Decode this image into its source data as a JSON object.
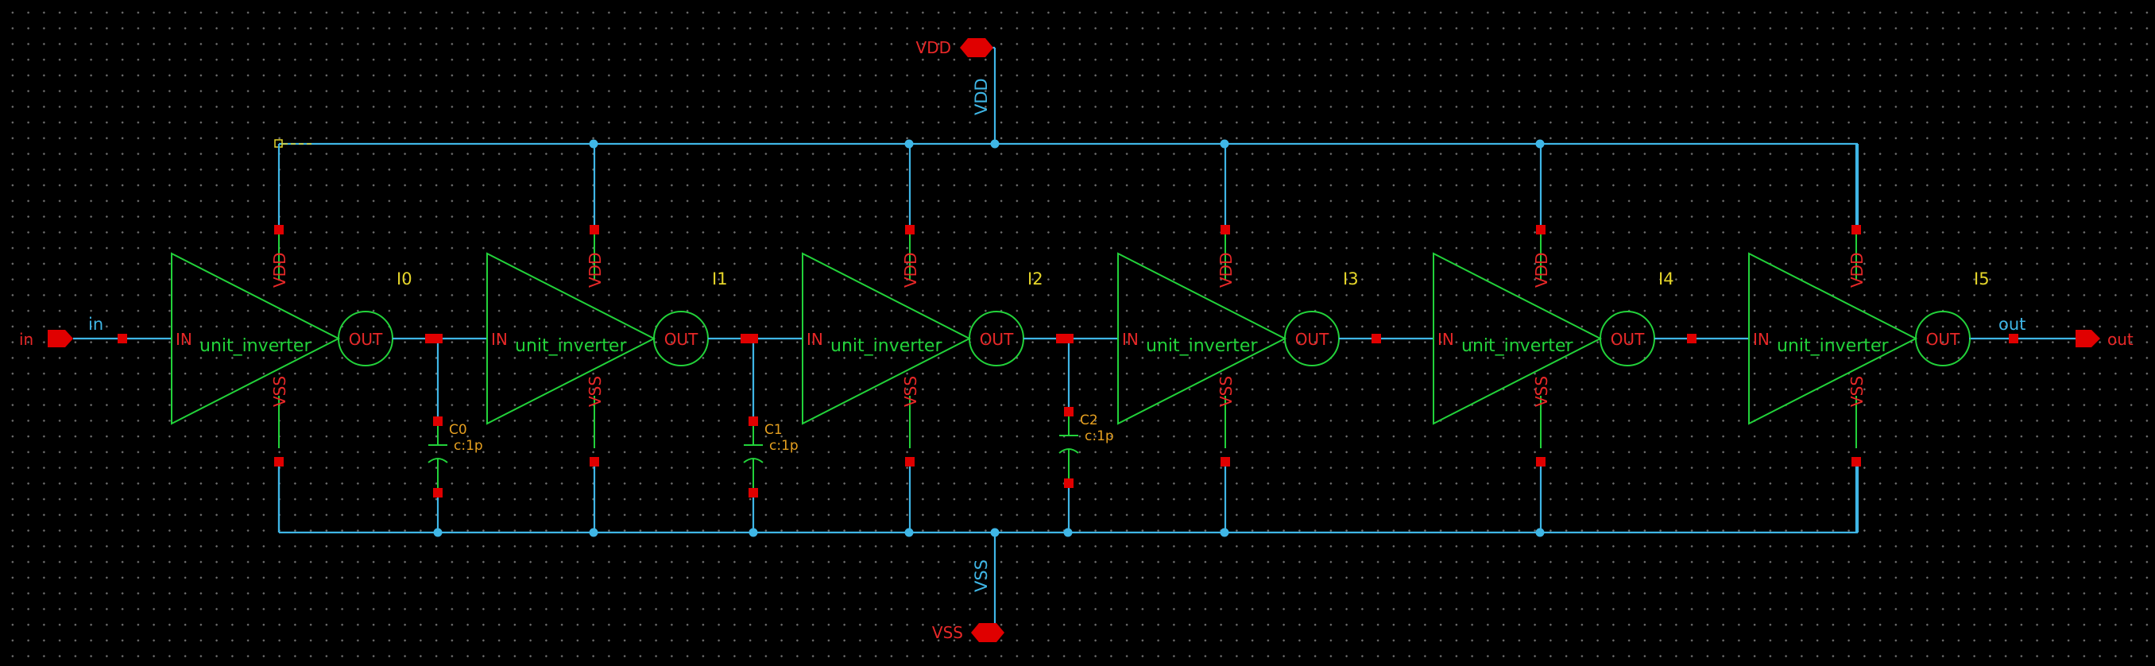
{
  "schematic": {
    "supply_pins": {
      "top": "VDD",
      "bottom": "VSS"
    },
    "rail_labels": {
      "top": "VDD",
      "bottom": "VSS"
    },
    "io_pins": {
      "input": "in",
      "output": "out"
    },
    "wire_labels": {
      "input": "in",
      "output": "out"
    },
    "cell_name": "unit_inverter",
    "pin_labels": {
      "in": "IN",
      "out": "OUT",
      "vdd": "VDD",
      "vss": "VSS"
    },
    "instances": [
      "I0",
      "I1",
      "I2",
      "I3",
      "I4",
      "I5"
    ],
    "capacitors": [
      {
        "name": "C0",
        "value": "c:1p"
      },
      {
        "name": "C1",
        "value": "c:1p"
      },
      {
        "name": "C2",
        "value": "c:1p"
      }
    ]
  },
  "colors": {
    "background": "#000000",
    "wire": "#3fb6e6",
    "symbol": "#22d23a",
    "pin": "#e00000",
    "instance_label": "#e6d62a",
    "device_label": "#e6a020"
  }
}
